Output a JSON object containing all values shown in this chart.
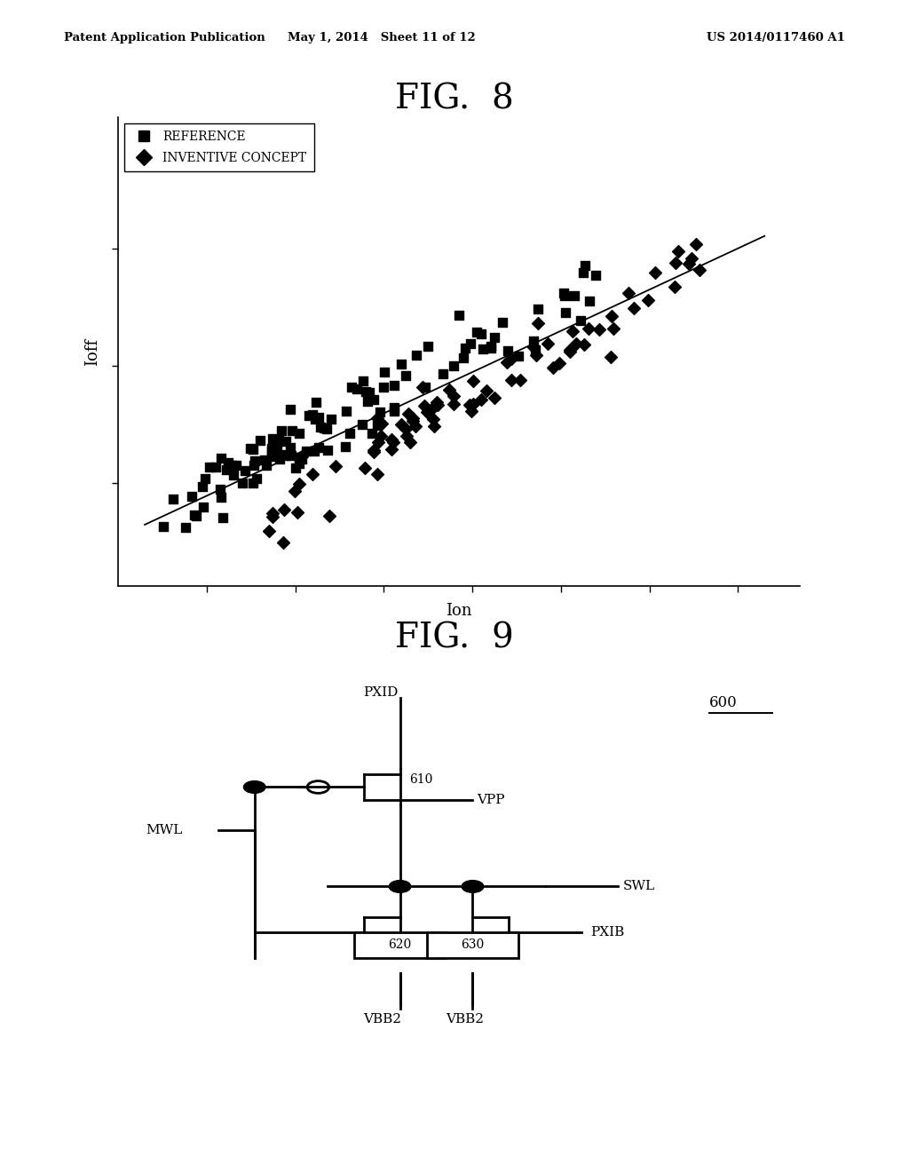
{
  "header_left": "Patent Application Publication",
  "header_mid": "May 1, 2014   Sheet 11 of 12",
  "header_right": "US 2014/0117460 A1",
  "fig8_title": "FIG.  8",
  "fig9_title": "FIG.  9",
  "xlabel": "Ion",
  "ylabel": "Ioff",
  "legend_ref": "REFERENCE",
  "legend_inv": "INVENTIVE CONCEPT",
  "background": "#ffffff",
  "text_color": "#000000",
  "ref_seed": 7,
  "inv_seed": 13
}
